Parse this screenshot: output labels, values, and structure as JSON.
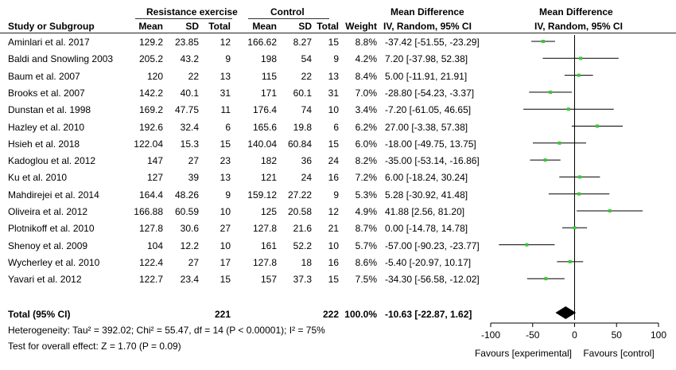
{
  "header": {
    "group1": "Resistance exercise",
    "group2": "Control",
    "md_title": "Mean Difference",
    "plot_title": "Mean Difference",
    "col_study": "Study or Subgroup",
    "col_mean1": "Mean",
    "col_sd1": "SD",
    "col_total1": "Total",
    "col_mean2": "Mean",
    "col_sd2": "SD",
    "col_total2": "Total",
    "col_weight": "Weight",
    "col_md": "IV, Random, 95% CI",
    "plot_subtitle": "IV, Random, 95% CI"
  },
  "studies": [
    {
      "name": "Aminlari et al. 2017",
      "mean1": "129.2",
      "sd1": "23.85",
      "total1": "12",
      "mean2": "166.62",
      "sd2": "8.27",
      "total2": "15",
      "weight": "8.8%",
      "ci": "-37.42 [-51.55, -23.29]"
    },
    {
      "name": "Baldi and Snowling 2003",
      "mean1": "205.2",
      "sd1": "43.2",
      "total1": "9",
      "mean2": "198",
      "sd2": "54",
      "total2": "9",
      "weight": "4.2%",
      "ci": "7.20 [-37.98, 52.38]"
    },
    {
      "name": "Baum et al. 2007",
      "mean1": "120",
      "sd1": "22",
      "total1": "13",
      "mean2": "115",
      "sd2": "22",
      "total2": "13",
      "weight": "8.4%",
      "ci": "5.00 [-11.91, 21.91]"
    },
    {
      "name": "Brooks et al. 2007",
      "mean1": "142.2",
      "sd1": "40.1",
      "total1": "31",
      "mean2": "171",
      "sd2": "60.1",
      "total2": "31",
      "weight": "7.0%",
      "ci": "-28.80 [-54.23, -3.37]"
    },
    {
      "name": "Dunstan et al. 1998",
      "mean1": "169.2",
      "sd1": "47.75",
      "total1": "11",
      "mean2": "176.4",
      "sd2": "74",
      "total2": "10",
      "weight": "3.4%",
      "ci": "-7.20 [-61.05, 46.65]"
    },
    {
      "name": "Hazley et al. 2010",
      "mean1": "192.6",
      "sd1": "32.4",
      "total1": "6",
      "mean2": "165.6",
      "sd2": "19.8",
      "total2": "6",
      "weight": "6.2%",
      "ci": "27.00 [-3.38, 57.38]"
    },
    {
      "name": "Hsieh et al. 2018",
      "mean1": "122.04",
      "sd1": "15.3",
      "total1": "15",
      "mean2": "140.04",
      "sd2": "60.84",
      "total2": "15",
      "weight": "6.0%",
      "ci": "-18.00 [-49.75, 13.75]"
    },
    {
      "name": "Kadoglou et al. 2012",
      "mean1": "147",
      "sd1": "27",
      "total1": "23",
      "mean2": "182",
      "sd2": "36",
      "total2": "24",
      "weight": "8.2%",
      "ci": "-35.00 [-53.14, -16.86]"
    },
    {
      "name": "Ku et al. 2010",
      "mean1": "127",
      "sd1": "39",
      "total1": "13",
      "mean2": "121",
      "sd2": "24",
      "total2": "16",
      "weight": "7.2%",
      "ci": "6.00 [-18.24, 30.24]"
    },
    {
      "name": "Mahdirejei et al. 2014",
      "mean1": "164.4",
      "sd1": "48.26",
      "total1": "9",
      "mean2": "159.12",
      "sd2": "27.22",
      "total2": "9",
      "weight": "5.3%",
      "ci": "5.28 [-30.92, 41.48]"
    },
    {
      "name": "Oliveira et al. 2012",
      "mean1": "166.88",
      "sd1": "60.59",
      "total1": "10",
      "mean2": "125",
      "sd2": "20.58",
      "total2": "12",
      "weight": "4.9%",
      "ci": "41.88 [2.56, 81.20]"
    },
    {
      "name": "Plotnikoff et al. 2010",
      "mean1": "127.8",
      "sd1": "30.6",
      "total1": "27",
      "mean2": "127.8",
      "sd2": "21.6",
      "total2": "21",
      "weight": "8.7%",
      "ci": "0.00 [-14.78, 14.78]"
    },
    {
      "name": "Shenoy et al. 2009",
      "mean1": "104",
      "sd1": "12.2",
      "total1": "10",
      "mean2": "161",
      "sd2": "52.2",
      "total2": "10",
      "weight": "5.7%",
      "ci": "-57.00 [-90.23, -23.77]"
    },
    {
      "name": "Wycherley et al. 2010",
      "mean1": "122.4",
      "sd1": "27",
      "total1": "17",
      "mean2": "127.8",
      "sd2": "18",
      "total2": "16",
      "weight": "8.6%",
      "ci": "-5.40 [-20.97, 10.17]"
    },
    {
      "name": "Yavari et al. 2012",
      "mean1": "122.7",
      "sd1": "23.4",
      "total1": "15",
      "mean2": "157",
      "sd2": "37.3",
      "total2": "15",
      "weight": "7.5%",
      "ci": "-34.30 [-56.58, -12.02]"
    }
  ],
  "total": {
    "label": "Total (95% CI)",
    "total1": "221",
    "total2": "222",
    "weight": "100.0%",
    "ci": "-10.63 [-22.87, 1.62]"
  },
  "heterogeneity": "Heterogeneity: Tau² = 392.02; Chi² = 55.47, df = 14 (P < 0.00001); I² = 75%",
  "overall_effect": "Test for overall effect: Z = 1.70 (P = 0.09)",
  "favours_left": "Favours [experimental]",
  "favours_right": "Favours [control]",
  "colors": {
    "point": "#33cc33",
    "line": "#000000",
    "diamond": "#000000"
  },
  "chart_data": {
    "type": "forest",
    "xlim": [
      -100,
      100
    ],
    "xticks": [
      -100,
      -50,
      0,
      50,
      100
    ],
    "points": [
      {
        "md": -37.42,
        "lo": -51.55,
        "hi": -23.29
      },
      {
        "md": 7.2,
        "lo": -37.98,
        "hi": 52.38
      },
      {
        "md": 5.0,
        "lo": -11.91,
        "hi": 21.91
      },
      {
        "md": -28.8,
        "lo": -54.23,
        "hi": -3.37
      },
      {
        "md": -7.2,
        "lo": -61.05,
        "hi": 46.65
      },
      {
        "md": 27.0,
        "lo": -3.38,
        "hi": 57.38
      },
      {
        "md": -18.0,
        "lo": -49.75,
        "hi": 13.75
      },
      {
        "md": -35.0,
        "lo": -53.14,
        "hi": -16.86
      },
      {
        "md": 6.0,
        "lo": -18.24,
        "hi": 30.24
      },
      {
        "md": 5.28,
        "lo": -30.92,
        "hi": 41.48
      },
      {
        "md": 41.88,
        "lo": 2.56,
        "hi": 81.2
      },
      {
        "md": 0.0,
        "lo": -14.78,
        "hi": 14.78
      },
      {
        "md": -57.0,
        "lo": -90.23,
        "hi": -23.77
      },
      {
        "md": -5.4,
        "lo": -20.97,
        "hi": 10.17
      },
      {
        "md": -34.3,
        "lo": -56.58,
        "hi": -12.02
      }
    ],
    "pooled": {
      "md": -10.63,
      "lo": -22.87,
      "hi": 1.62
    }
  }
}
